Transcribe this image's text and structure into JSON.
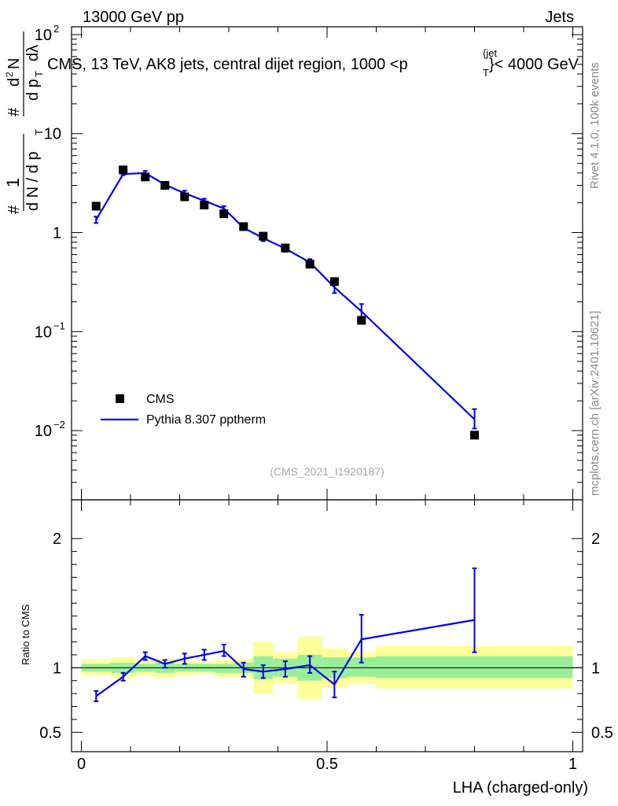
{
  "header": {
    "left": "13000 GeV pp",
    "right": "Jets"
  },
  "side_labels": {
    "rivet": "Rivet 4.1.0,  100k events",
    "mcplots": "mcplots.cern.ch [arXiv:2401.10621]"
  },
  "colors": {
    "mc": "#0000ee",
    "data": "#000000",
    "band_inner": "#99ee99",
    "band_outer": "#ffff99"
  },
  "chart_data": [
    {
      "type": "scatter",
      "title": "CMS, 13 TeV, AK8 jets, central dijet region, 1000 < p_T^{jet} < 4000 GeV",
      "title_parts": {
        "prefix": "CMS, 13 TeV, AK8 jets, central dijet region, 1000 <p",
        "sup": "{jet",
        "sub": "T",
        "suffix": "}< 4000 GeV"
      },
      "ylabel_parts": {
        "a": "#",
        "b": "1",
        "c": "d N / d p",
        "d": "T",
        "e": "#",
        "f": "d",
        "g": "N",
        "h": "d p",
        "i": "T",
        "j": "dλ",
        "sup2": "2"
      },
      "yscale": "log",
      "ylim": [
        0.002,
        120
      ],
      "xlim": [
        -0.02,
        1.02
      ],
      "y_ticks": [
        {
          "value": 100,
          "base": "10",
          "exp": "2"
        },
        {
          "value": 10,
          "base": "10",
          "exp": ""
        },
        {
          "value": 1,
          "base": "1",
          "exp": ""
        },
        {
          "value": 0.1,
          "base": "10",
          "exp": "−1"
        },
        {
          "value": 0.01,
          "base": "10",
          "exp": "−2"
        }
      ],
      "watermark": "(CMS_2021_I1920187)",
      "legend": {
        "placement": "bottom-left",
        "entries": [
          {
            "label": "CMS",
            "kind": "marker"
          },
          {
            "label": "Pythia 8.307 pptherm",
            "kind": "line"
          }
        ]
      },
      "series": [
        {
          "name": "CMS",
          "x": [
            0.03,
            0.085,
            0.13,
            0.17,
            0.21,
            0.25,
            0.29,
            0.33,
            0.37,
            0.415,
            0.465,
            0.515,
            0.57,
            0.8
          ],
          "y": [
            1.85,
            4.3,
            3.65,
            3.0,
            2.3,
            1.9,
            1.55,
            1.15,
            0.92,
            0.7,
            0.48,
            0.32,
            0.13,
            0.009
          ]
        },
        {
          "name": "Pythia 8.307 pptherm",
          "x": [
            0.03,
            0.085,
            0.13,
            0.17,
            0.21,
            0.25,
            0.29,
            0.33,
            0.37,
            0.415,
            0.465,
            0.515,
            0.57,
            0.8
          ],
          "y": [
            1.35,
            3.9,
            4.0,
            3.05,
            2.5,
            2.1,
            1.75,
            1.12,
            0.88,
            0.69,
            0.5,
            0.28,
            0.16,
            0.013
          ],
          "err_lo": [
            1.25,
            3.8,
            3.8,
            2.95,
            2.35,
            2.0,
            1.65,
            1.06,
            0.82,
            0.64,
            0.46,
            0.245,
            0.13,
            0.0105
          ],
          "err_hi": [
            1.45,
            4.0,
            4.2,
            3.15,
            2.65,
            2.2,
            1.85,
            1.18,
            0.94,
            0.74,
            0.54,
            0.315,
            0.19,
            0.0165
          ]
        }
      ]
    },
    {
      "type": "line",
      "ylabel": "Ratio to CMS",
      "xlabel": "LHA (charged-only)",
      "ylim": [
        0.35,
        2.3
      ],
      "xlim": [
        -0.02,
        1.02
      ],
      "x_ticks": [
        {
          "value": 0,
          "label": "0"
        },
        {
          "value": 0.5,
          "label": "0.5"
        },
        {
          "value": 1,
          "label": "1"
        }
      ],
      "y_ticks": [
        {
          "value": 2,
          "label": "2"
        },
        {
          "value": 1,
          "label": "1"
        },
        {
          "value": 0.5,
          "label": "0.5"
        }
      ],
      "reference_line": 1,
      "bands": [
        {
          "x0": 0.0,
          "x1": 0.06,
          "inner": [
            0.97,
            1.03
          ],
          "outer": [
            0.94,
            1.06
          ]
        },
        {
          "x0": 0.06,
          "x1": 0.11,
          "inner": [
            0.96,
            1.04
          ],
          "outer": [
            0.92,
            1.08
          ]
        },
        {
          "x0": 0.11,
          "x1": 0.15,
          "inner": [
            0.97,
            1.03
          ],
          "outer": [
            0.94,
            1.06
          ]
        },
        {
          "x0": 0.15,
          "x1": 0.19,
          "inner": [
            0.96,
            1.04
          ],
          "outer": [
            0.92,
            1.07
          ]
        },
        {
          "x0": 0.19,
          "x1": 0.23,
          "inner": [
            0.97,
            1.03
          ],
          "outer": [
            0.94,
            1.06
          ]
        },
        {
          "x0": 0.23,
          "x1": 0.27,
          "inner": [
            0.97,
            1.03
          ],
          "outer": [
            0.95,
            1.05
          ]
        },
        {
          "x0": 0.27,
          "x1": 0.31,
          "inner": [
            0.96,
            1.03
          ],
          "outer": [
            0.93,
            1.06
          ]
        },
        {
          "x0": 0.31,
          "x1": 0.35,
          "inner": [
            0.96,
            1.04
          ],
          "outer": [
            0.93,
            1.07
          ]
        },
        {
          "x0": 0.35,
          "x1": 0.39,
          "inner": [
            0.91,
            1.09
          ],
          "outer": [
            0.8,
            1.2
          ]
        },
        {
          "x0": 0.39,
          "x1": 0.44,
          "inner": [
            0.93,
            1.07
          ],
          "outer": [
            0.88,
            1.12
          ]
        },
        {
          "x0": 0.44,
          "x1": 0.49,
          "inner": [
            0.9,
            1.1
          ],
          "outer": [
            0.76,
            1.24
          ]
        },
        {
          "x0": 0.49,
          "x1": 0.54,
          "inner": [
            0.92,
            1.08
          ],
          "outer": [
            0.85,
            1.15
          ]
        },
        {
          "x0": 0.54,
          "x1": 0.6,
          "inner": [
            0.93,
            1.08
          ],
          "outer": [
            0.88,
            1.12
          ]
        },
        {
          "x0": 0.6,
          "x1": 1.0,
          "inner": [
            0.92,
            1.09
          ],
          "outer": [
            0.84,
            1.17
          ]
        }
      ],
      "series": [
        {
          "name": "Pythia 8.307 pptherm / CMS",
          "x": [
            0.03,
            0.085,
            0.13,
            0.17,
            0.21,
            0.25,
            0.29,
            0.33,
            0.37,
            0.415,
            0.465,
            0.515,
            0.57,
            0.8
          ],
          "y": [
            0.78,
            0.93,
            1.09,
            1.03,
            1.07,
            1.1,
            1.13,
            0.99,
            0.97,
            0.99,
            1.02,
            0.87,
            1.22,
            1.37
          ],
          "err_lo": [
            0.74,
            0.9,
            1.06,
            1.0,
            1.03,
            1.06,
            1.09,
            0.93,
            0.92,
            0.93,
            0.96,
            0.77,
            1.04,
            1.12
          ],
          "err_hi": [
            0.82,
            0.96,
            1.12,
            1.06,
            1.11,
            1.14,
            1.18,
            1.04,
            1.02,
            1.05,
            1.09,
            0.97,
            1.41,
            1.77
          ]
        }
      ]
    }
  ]
}
